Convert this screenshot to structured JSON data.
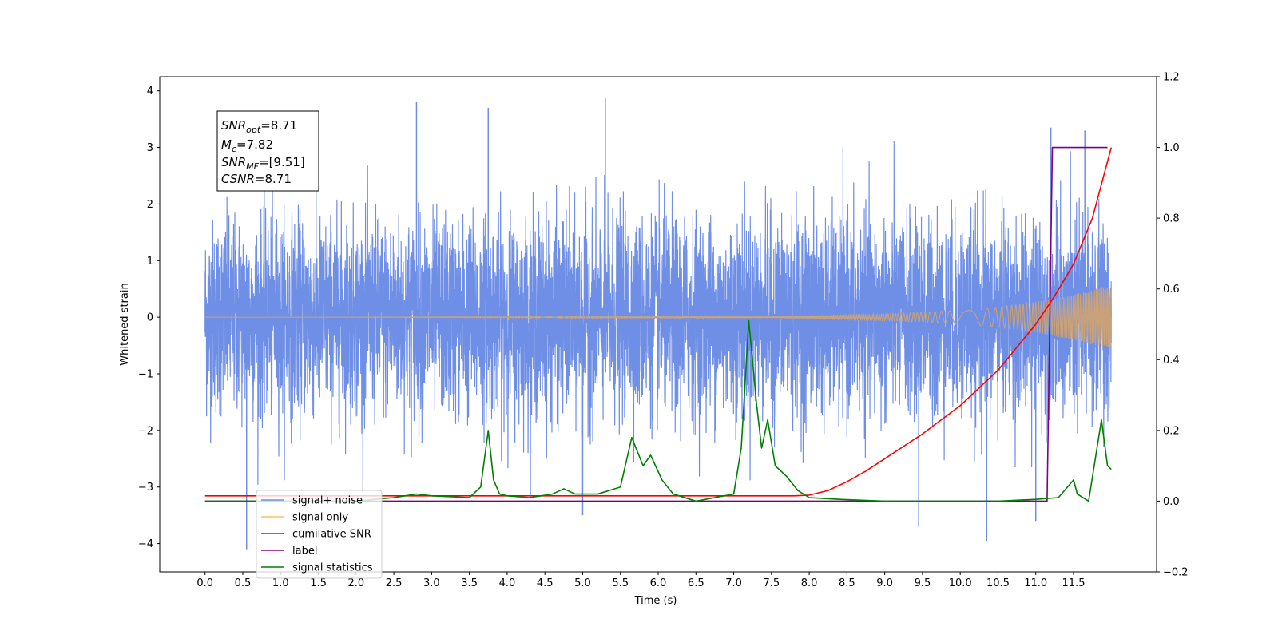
{
  "chart_data": {
    "type": "line",
    "xlabel": "Time (s)",
    "ylabel_left": "Whitened strain",
    "ylabel_right": "",
    "x_ticks": [
      0.0,
      0.5,
      1.0,
      1.5,
      2.0,
      2.5,
      3.0,
      3.5,
      4.0,
      4.5,
      5.0,
      5.5,
      6.0,
      6.5,
      7.0,
      7.5,
      8.0,
      8.5,
      9.0,
      9.5,
      10.0,
      10.5,
      11.0,
      11.5
    ],
    "x_tick_labels": [
      "0.0",
      "0.5",
      "1.0",
      "1.5",
      "2.0",
      "2.5",
      "3.0",
      "3.5",
      "4.0",
      "4.5",
      "5.0",
      "5.5",
      "6.0",
      "6.5",
      "7.0",
      "7.5",
      "8.0",
      "8.5",
      "9.0",
      "9.5",
      "10.0",
      "10.5",
      "11.0",
      "11.5"
    ],
    "xlim": [
      -0.6,
      12.6
    ],
    "ylim_left": [
      -4.5,
      4.25
    ],
    "y_left_ticks": [
      -4,
      -3,
      -2,
      -1,
      0,
      1,
      2,
      3,
      4
    ],
    "y_left_tick_labels": [
      "−4",
      "−3",
      "−2",
      "−1",
      "0",
      "1",
      "2",
      "3",
      "4"
    ],
    "ylim_right": [
      -0.2,
      1.2
    ],
    "y_right_ticks": [
      -0.2,
      0.0,
      0.2,
      0.4,
      0.6,
      0.8,
      1.0,
      1.2
    ],
    "y_right_tick_labels": [
      "−0.2",
      "0.0",
      "0.2",
      "0.4",
      "0.6",
      "0.8",
      "1.0",
      "1.2"
    ],
    "grid": false,
    "legend_position": "bottom-left",
    "series": [
      {
        "name": "signal+ noise",
        "axis": "left",
        "color": "#6f8fe6",
        "description_values": {
          "x_range": [
            0.0,
            12.0
          ],
          "typical_range": [
            -2.0,
            2.3
          ],
          "extremes": [
            -4.1,
            3.87
          ]
        },
        "peaks": [
          [
            0.55,
            -4.1
          ],
          [
            2.8,
            3.8
          ],
          [
            3.75,
            3.7
          ],
          [
            5.3,
            3.87
          ],
          [
            5.0,
            -3.5
          ],
          [
            9.45,
            -3.7
          ],
          [
            10.35,
            -3.95
          ],
          [
            11.0,
            -3.6
          ],
          [
            11.65,
            3.3
          ],
          [
            11.2,
            3.35
          ]
        ]
      },
      {
        "name": "signal only",
        "axis": "left",
        "color": "#c9a27a",
        "envelope": [
          [
            0.0,
            0.0
          ],
          [
            7.5,
            0.01
          ],
          [
            8.0,
            0.02
          ],
          [
            9.0,
            0.06
          ],
          [
            10.0,
            0.12
          ],
          [
            10.5,
            0.18
          ],
          [
            11.0,
            0.27
          ],
          [
            11.5,
            0.4
          ],
          [
            12.0,
            0.58
          ]
        ]
      },
      {
        "name": "cumilative SNR",
        "axis": "right",
        "color": "#ff0000",
        "x": [
          0.0,
          7.8,
          8.0,
          8.25,
          8.5,
          8.75,
          9.0,
          9.5,
          10.0,
          10.5,
          11.0,
          11.25,
          11.5,
          11.75,
          12.0
        ],
        "y": [
          0.015,
          0.015,
          0.017,
          0.03,
          0.055,
          0.085,
          0.12,
          0.19,
          0.27,
          0.37,
          0.5,
          0.58,
          0.67,
          0.8,
          1.0
        ]
      },
      {
        "name": "label",
        "axis": "right",
        "color": "#800080",
        "x": [
          0.0,
          11.15,
          11.22,
          11.95
        ],
        "y": [
          0.0,
          0.0,
          1.0,
          1.0
        ]
      },
      {
        "name": "signal statistics",
        "axis": "right",
        "color": "#008000",
        "x": [
          0.0,
          2.0,
          2.5,
          2.8,
          3.0,
          3.5,
          3.65,
          3.75,
          3.82,
          3.9,
          4.0,
          4.3,
          4.6,
          4.75,
          4.9,
          5.2,
          5.5,
          5.65,
          5.8,
          5.9,
          6.05,
          6.2,
          6.5,
          7.0,
          7.1,
          7.2,
          7.3,
          7.37,
          7.45,
          7.55,
          7.7,
          7.85,
          8.0,
          8.4,
          9.0,
          10.5,
          11.0,
          11.3,
          11.5,
          11.55,
          11.7,
          11.87,
          11.95,
          12.0
        ],
        "y": [
          0.0,
          0.0,
          0.01,
          0.02,
          0.015,
          0.01,
          0.04,
          0.2,
          0.06,
          0.02,
          0.015,
          0.01,
          0.02,
          0.035,
          0.02,
          0.02,
          0.04,
          0.18,
          0.1,
          0.13,
          0.06,
          0.02,
          0.0,
          0.02,
          0.15,
          0.51,
          0.28,
          0.15,
          0.23,
          0.1,
          0.07,
          0.03,
          0.01,
          0.005,
          0.0,
          0.0,
          0.005,
          0.01,
          0.06,
          0.02,
          0.0,
          0.23,
          0.1,
          0.09
        ]
      }
    ],
    "legend": [
      {
        "label": "signal+ noise",
        "color": "#6f8fe6"
      },
      {
        "label": "signal only",
        "color": "#ffbf5e"
      },
      {
        "label": "cumilative SNR",
        "color": "#ff0000"
      },
      {
        "label": "label",
        "color": "#800080"
      },
      {
        "label": "signal statistics",
        "color": "#008000"
      }
    ],
    "annotation": {
      "snr_opt_label": "SNR",
      "snr_opt_sub": "opt",
      "snr_opt_value": "=8.71",
      "mc_label": "M",
      "mc_sub": "c",
      "mc_value": "=7.82",
      "snr_mf_label": "SNR",
      "snr_mf_sub": "MF",
      "snr_mf_value": "=[9.51]",
      "csnr_label": "CSNR",
      "csnr_value": "=8.71"
    }
  }
}
